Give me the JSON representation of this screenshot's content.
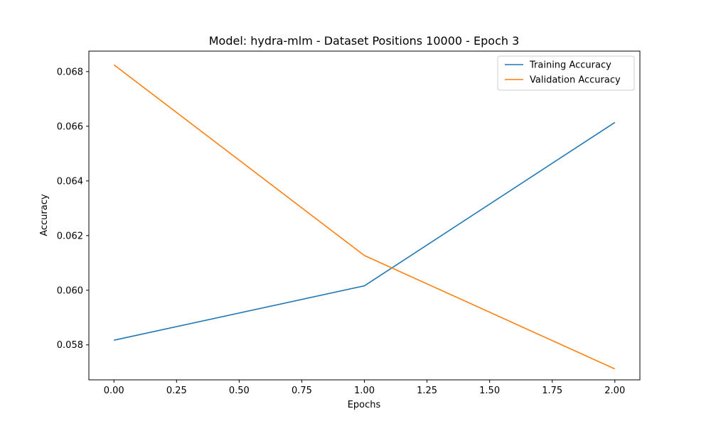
{
  "chart_data": {
    "type": "line",
    "title": "Model: hydra-mlm - Dataset Positions 10000 - Epoch 3",
    "xlabel": "Epochs",
    "ylabel": "Accuracy",
    "x": [
      0,
      1,
      2
    ],
    "xlim": [
      -0.1,
      2.1
    ],
    "ylim": [
      0.05672,
      0.06875
    ],
    "xticks": [
      0.0,
      0.25,
      0.5,
      0.75,
      1.0,
      1.25,
      1.5,
      1.75,
      2.0
    ],
    "xtick_labels": [
      "0.00",
      "0.25",
      "0.50",
      "0.75",
      "1.00",
      "1.25",
      "1.50",
      "1.75",
      "2.00"
    ],
    "yticks": [
      0.058,
      0.06,
      0.062,
      0.064,
      0.066,
      0.068
    ],
    "ytick_labels": [
      "0.058",
      "0.060",
      "0.062",
      "0.064",
      "0.066",
      "0.068"
    ],
    "grid": false,
    "legend_position": "top-right",
    "series": [
      {
        "name": "Training Accuracy",
        "color": "#1f77b4",
        "values": [
          0.05817,
          0.06016,
          0.06614
        ]
      },
      {
        "name": "Validation Accuracy",
        "color": "#ff7f0e",
        "values": [
          0.06825,
          0.06127,
          0.05712
        ]
      }
    ]
  }
}
